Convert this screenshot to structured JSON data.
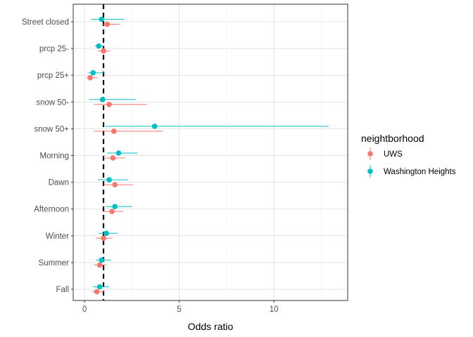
{
  "chart_data": {
    "type": "scatter",
    "subtype": "forest-plot",
    "xlabel": "Odds ratio",
    "ylabel": "",
    "xlim": [
      -0.6,
      13.9
    ],
    "xticks": [
      0,
      5,
      10
    ],
    "reference_line": 1,
    "grid": true,
    "legend_title": "neightborhood",
    "legend_position": "right",
    "categories": [
      "Street closed",
      "prcp 25-",
      "prcp 25+",
      "snow 50-",
      "snow 50+",
      "Morning",
      "Dawn",
      "Afternoon",
      "Winter",
      "Summer",
      "Fall"
    ],
    "series": [
      {
        "name": "UWS",
        "color": "#F8766D",
        "estimate": [
          1.2,
          1.0,
          0.3,
          1.3,
          1.55,
          1.5,
          1.6,
          1.45,
          1.0,
          0.8,
          0.65
        ],
        "lower": [
          0.9,
          0.7,
          0.1,
          0.5,
          0.5,
          1.1,
          1.0,
          1.0,
          0.6,
          0.5,
          0.4
        ],
        "upper": [
          1.85,
          1.35,
          0.7,
          3.3,
          4.15,
          2.15,
          2.55,
          2.05,
          1.45,
          1.15,
          1.05
        ]
      },
      {
        "name": "Washington Heights",
        "color": "#00BFC4",
        "estimate": [
          0.9,
          0.75,
          0.45,
          0.95,
          3.7,
          1.8,
          1.3,
          1.6,
          1.15,
          0.9,
          0.8
        ],
        "lower": [
          0.35,
          0.55,
          0.2,
          0.25,
          1.1,
          1.2,
          0.7,
          1.1,
          0.75,
          0.6,
          0.45
        ],
        "upper": [
          2.1,
          1.05,
          1.05,
          2.7,
          12.9,
          2.8,
          2.3,
          2.5,
          1.75,
          1.4,
          1.3
        ]
      }
    ]
  }
}
